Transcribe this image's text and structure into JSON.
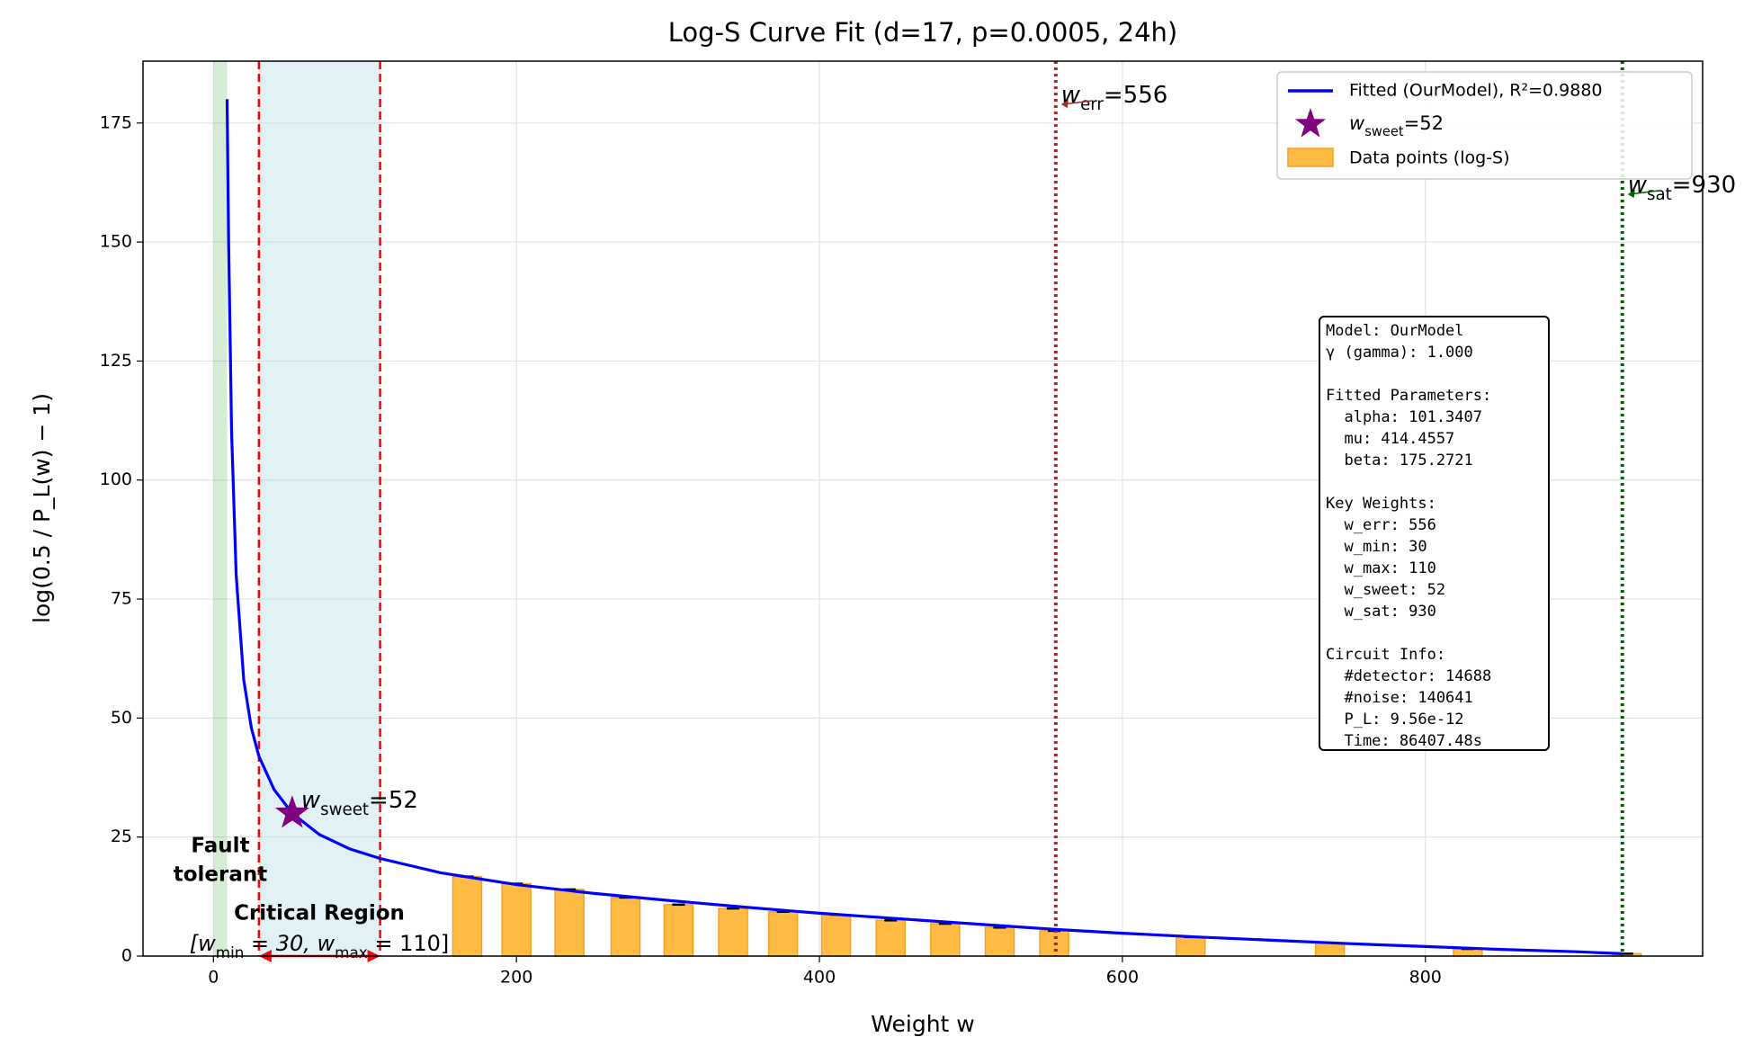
{
  "chart_data": {
    "type": "line",
    "title": "Log-S Curve Fit (d=17, p=0.0005, 24h)",
    "x_label": "Weight w",
    "y_label": "log(0.5 / P_L(w) − 1)",
    "xlim": [
      -46.5,
      983
    ],
    "ylim": [
      0,
      188
    ],
    "xticks": [
      0,
      200,
      400,
      600,
      800
    ],
    "yticks": [
      0,
      25,
      50,
      75,
      100,
      125,
      150,
      175
    ],
    "grid": true,
    "legend": "upper right",
    "series": [
      {
        "name": "Fitted (OurModel), R²=0.9880",
        "color": "#0000ff",
        "x": [
          9,
          10,
          12,
          15,
          20,
          25,
          30,
          40,
          52,
          70,
          90,
          110,
          150,
          200,
          250,
          300,
          350,
          400,
          450,
          500,
          556,
          600,
          650,
          700,
          750,
          800,
          850,
          900,
          930
        ],
        "values": [
          180,
          150,
          110,
          80,
          58,
          48,
          42,
          35,
          30,
          25.5,
          22.5,
          20.5,
          17.5,
          15,
          13.2,
          11.7,
          10.3,
          9,
          7.9,
          6.8,
          5.6,
          4.8,
          4,
          3.3,
          2.6,
          2,
          1.4,
          0.9,
          0.5
        ]
      }
    ],
    "bars": {
      "name": "Data points (log-S)",
      "color": "#ffbb44",
      "edge_color": "#f5a020",
      "width": 19,
      "x": [
        167.5,
        200,
        235,
        272,
        307,
        343,
        376,
        411,
        447,
        483,
        519,
        555,
        645,
        737,
        828,
        933
      ],
      "values": [
        16.7,
        15.2,
        14,
        12.3,
        10.8,
        10,
        9.3,
        8.7,
        7.5,
        6.8,
        6,
        5.3,
        4,
        2.8,
        1.5,
        0.5
      ]
    },
    "sweet": {
      "x": 52,
      "y": 30,
      "color": "#800080",
      "label": [
        "w",
        "sweet",
        "=52"
      ]
    },
    "vlines": [
      {
        "x": 30,
        "color": "#ff0000",
        "style": "dashed"
      },
      {
        "x": 110,
        "color": "#ff0000",
        "style": "dashed"
      },
      {
        "x": 556,
        "color": "#a52a2a",
        "style": "dotted",
        "label": [
          "w",
          "err",
          "=556"
        ]
      },
      {
        "x": 930,
        "color": "#006400",
        "style": "dotted",
        "label": [
          "w",
          "sat",
          "=930"
        ]
      }
    ],
    "fault_region": {
      "from": 0,
      "to": 9,
      "color": "#2ca02c",
      "label": [
        "Fault",
        "tolerant"
      ],
      "label_color": "#008000"
    },
    "critical_region": {
      "from": 30,
      "to": 110,
      "color": "#add8e6",
      "label": "Critical Region",
      "range_label": [
        "[w",
        "min",
        " = 30, w",
        "max",
        " = 110]"
      ]
    },
    "info_box": [
      [
        "Model: OurModel",
        "γ (gamma): 1.000"
      ],
      [
        "Fitted Parameters:",
        "  alpha: 101.3407",
        "  mu: 414.4557",
        "  beta: 175.2721"
      ],
      [
        "Key Weights:",
        "  w_err: 556",
        "  w_min: 30",
        "  w_max: 110",
        "  w_sweet: 52",
        "  w_sat: 930"
      ],
      [
        "Circuit Info:",
        "  #detector: 14688",
        "  #noise: 140641",
        "  P_L: 9.56e-12",
        "  Time: 86407.48s"
      ]
    ]
  }
}
